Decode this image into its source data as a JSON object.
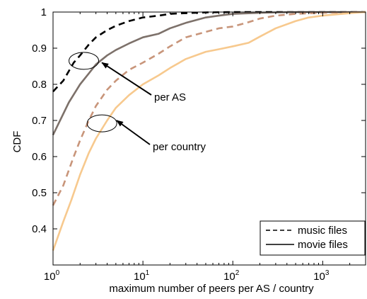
{
  "chart_data": {
    "type": "line",
    "title": "",
    "xlabel": "maximum number of peers per AS / country",
    "ylabel": "CDF",
    "xscale": "log",
    "xlim": [
      1,
      3000
    ],
    "ylim": [
      0.3,
      1
    ],
    "x_ticks": [
      {
        "value": 1,
        "base": "10",
        "exp": "0"
      },
      {
        "value": 10,
        "base": "10",
        "exp": "1"
      },
      {
        "value": 100,
        "base": "10",
        "exp": "2"
      },
      {
        "value": 1000,
        "base": "10",
        "exp": "3"
      }
    ],
    "y_ticks": [
      "0.4",
      "0.5",
      "0.6",
      "0.7",
      "0.8",
      "0.9",
      "1"
    ],
    "grid": false,
    "legend": {
      "placement": "bottom-right",
      "entries": [
        {
          "label": "music files",
          "style": "dashed"
        },
        {
          "label": "movie files",
          "style": "solid"
        }
      ]
    },
    "annotations": [
      {
        "text": "per AS",
        "ellipse_at": [
          2.2,
          0.865
        ],
        "arrow_tip": [
          3.5,
          0.86
        ]
      },
      {
        "text": "per country",
        "ellipse_at": [
          3.5,
          0.692
        ],
        "arrow_tip": [
          5.1,
          0.7
        ]
      }
    ],
    "series": [
      {
        "group": "per AS",
        "files": "music",
        "style": "dashed",
        "color": "#000000",
        "points": [
          [
            1,
            0.78
          ],
          [
            1.3,
            0.81
          ],
          [
            1.7,
            0.86
          ],
          [
            2,
            0.88
          ],
          [
            2.5,
            0.91
          ],
          [
            3,
            0.93
          ],
          [
            4,
            0.95
          ],
          [
            5,
            0.962
          ],
          [
            7,
            0.975
          ],
          [
            10,
            0.985
          ],
          [
            15,
            0.99
          ],
          [
            20,
            0.995
          ],
          [
            30,
            0.997
          ],
          [
            50,
            0.999
          ],
          [
            100,
            1
          ],
          [
            3000,
            1
          ]
        ]
      },
      {
        "group": "per AS",
        "files": "movie",
        "style": "solid",
        "color": "#7d716a",
        "points": [
          [
            1,
            0.66
          ],
          [
            1.5,
            0.75
          ],
          [
            2,
            0.8
          ],
          [
            2.5,
            0.83
          ],
          [
            3,
            0.855
          ],
          [
            4,
            0.88
          ],
          [
            5,
            0.895
          ],
          [
            7,
            0.913
          ],
          [
            10,
            0.93
          ],
          [
            15,
            0.94
          ],
          [
            20,
            0.955
          ],
          [
            30,
            0.97
          ],
          [
            50,
            0.985
          ],
          [
            70,
            0.99
          ],
          [
            100,
            0.995
          ],
          [
            200,
            0.998
          ],
          [
            500,
            1
          ],
          [
            3000,
            1
          ]
        ]
      },
      {
        "group": "per country",
        "files": "music",
        "style": "dashed",
        "color": "#c8957a",
        "points": [
          [
            1,
            0.465
          ],
          [
            1.3,
            0.52
          ],
          [
            1.7,
            0.6
          ],
          [
            2,
            0.645
          ],
          [
            2.5,
            0.7
          ],
          [
            3,
            0.74
          ],
          [
            4,
            0.785
          ],
          [
            5,
            0.81
          ],
          [
            7,
            0.84
          ],
          [
            10,
            0.86
          ],
          [
            15,
            0.885
          ],
          [
            20,
            0.905
          ],
          [
            30,
            0.93
          ],
          [
            50,
            0.945
          ],
          [
            70,
            0.955
          ],
          [
            100,
            0.96
          ],
          [
            150,
            0.972
          ],
          [
            200,
            0.982
          ],
          [
            300,
            0.99
          ],
          [
            500,
            0.995
          ],
          [
            1000,
            0.998
          ],
          [
            3000,
            1
          ]
        ]
      },
      {
        "group": "per country",
        "files": "movie",
        "style": "solid",
        "color": "#f7c98e",
        "points": [
          [
            1,
            0.34
          ],
          [
            1.3,
            0.42
          ],
          [
            1.6,
            0.48
          ],
          [
            2,
            0.55
          ],
          [
            2.5,
            0.61
          ],
          [
            3,
            0.65
          ],
          [
            4,
            0.7
          ],
          [
            5,
            0.735
          ],
          [
            7,
            0.77
          ],
          [
            10,
            0.8
          ],
          [
            15,
            0.825
          ],
          [
            20,
            0.845
          ],
          [
            30,
            0.87
          ],
          [
            50,
            0.89
          ],
          [
            70,
            0.897
          ],
          [
            100,
            0.905
          ],
          [
            150,
            0.915
          ],
          [
            200,
            0.932
          ],
          [
            300,
            0.955
          ],
          [
            500,
            0.975
          ],
          [
            700,
            0.985
          ],
          [
            1000,
            0.99
          ],
          [
            2000,
            0.997
          ],
          [
            3000,
            1
          ]
        ]
      }
    ]
  }
}
